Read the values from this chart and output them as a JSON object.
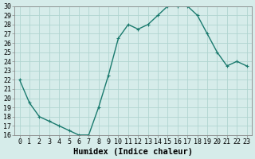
{
  "x": [
    0,
    1,
    2,
    3,
    4,
    5,
    6,
    7,
    8,
    9,
    10,
    11,
    12,
    13,
    14,
    15,
    16,
    17,
    18,
    19,
    20,
    21,
    22,
    23
  ],
  "y": [
    22.0,
    19.5,
    18.0,
    17.5,
    17.0,
    16.5,
    16.0,
    16.0,
    19.0,
    22.5,
    26.5,
    28.0,
    27.5,
    28.0,
    29.0,
    30.0,
    30.0,
    30.0,
    29.0,
    27.0,
    25.0,
    23.5,
    24.0,
    23.5
  ],
  "xlabel": "Humidex (Indice chaleur)",
  "ylim": [
    16,
    30
  ],
  "xlim": [
    -0.5,
    23.5
  ],
  "yticks": [
    16,
    17,
    18,
    19,
    20,
    21,
    22,
    23,
    24,
    25,
    26,
    27,
    28,
    29,
    30
  ],
  "xticks": [
    0,
    1,
    2,
    3,
    4,
    5,
    6,
    7,
    8,
    9,
    10,
    11,
    12,
    13,
    14,
    15,
    16,
    17,
    18,
    19,
    20,
    21,
    22,
    23
  ],
  "line_color": "#1a7a6e",
  "marker_color": "#1a7a6e",
  "bg_color": "#d6ecea",
  "grid_color": "#b0d5d0",
  "border_color": "#888888",
  "xlabel_fontsize": 7.5,
  "tick_fontsize": 6,
  "marker_size": 3,
  "line_width": 1.0
}
